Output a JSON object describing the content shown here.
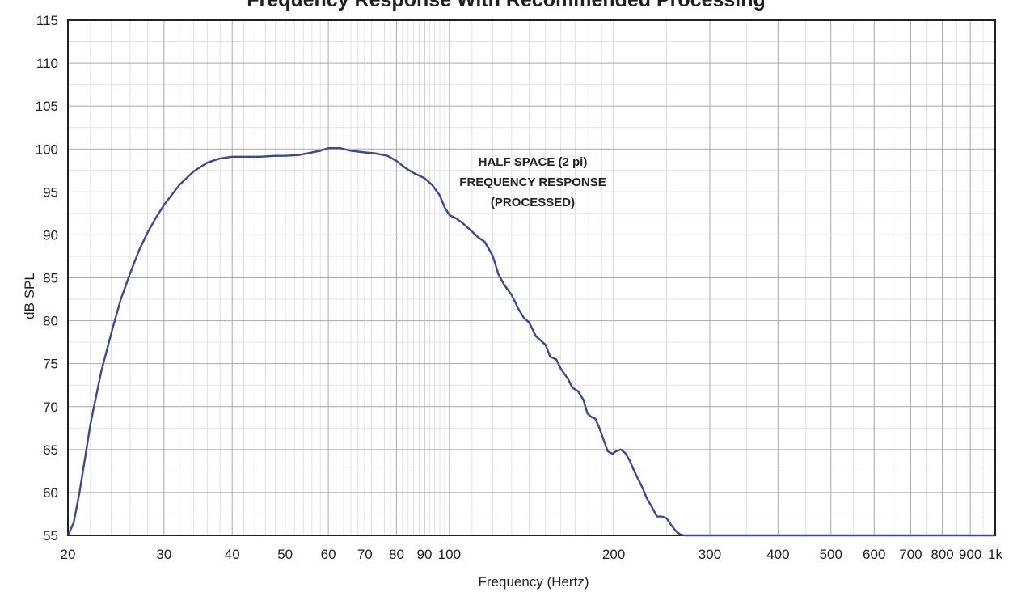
{
  "chart_data": {
    "type": "line",
    "title": "Frequency Response With Recommended Processing",
    "xlabel": "Frequency (Hertz)",
    "ylabel": "dB SPL",
    "x_scale": "log",
    "xlim": [
      20,
      1000
    ],
    "ylim": [
      55,
      115
    ],
    "grid": true,
    "x_ticks": [
      {
        "value": 20,
        "label": "20"
      },
      {
        "value": 30,
        "label": "30"
      },
      {
        "value": 40,
        "label": "40"
      },
      {
        "value": 50,
        "label": "50"
      },
      {
        "value": 60,
        "label": "60"
      },
      {
        "value": 70,
        "label": "70"
      },
      {
        "value": 80,
        "label": "80"
      },
      {
        "value": 90,
        "label": "90"
      },
      {
        "value": 100,
        "label": "100"
      },
      {
        "value": 200,
        "label": "200"
      },
      {
        "value": 300,
        "label": "300"
      },
      {
        "value": 400,
        "label": "400"
      },
      {
        "value": 500,
        "label": "500"
      },
      {
        "value": 600,
        "label": "600"
      },
      {
        "value": 700,
        "label": "700"
      },
      {
        "value": 800,
        "label": "800"
      },
      {
        "value": 900,
        "label": "900"
      },
      {
        "value": 1000,
        "label": "1k"
      }
    ],
    "y_ticks": [
      55,
      60,
      65,
      70,
      75,
      80,
      85,
      90,
      95,
      100,
      105,
      110,
      115
    ],
    "annotation": [
      "HALF SPACE (2 pi)",
      "FREQUENCY RESPONSE",
      "(PROCESSED)"
    ],
    "series": [
      {
        "color": "#3b4a8c",
        "x": [
          20,
          20.5,
          21,
          21.5,
          22,
          23,
          24,
          25,
          26,
          27,
          28,
          29,
          30,
          32,
          34,
          36,
          38,
          40,
          42,
          45,
          48,
          50,
          53,
          55,
          58,
          60,
          63,
          66,
          70,
          73,
          77,
          80,
          83,
          86,
          90,
          93,
          96,
          98,
          100,
          103,
          106,
          110,
          113,
          116,
          120,
          123,
          126,
          130,
          134,
          137,
          140,
          144,
          147,
          150,
          153,
          157,
          160,
          165,
          168,
          172,
          176,
          179,
          182,
          185,
          188,
          191,
          195,
          199,
          202,
          206,
          210,
          214,
          218,
          222,
          226,
          230,
          235,
          240,
          245,
          250,
          255,
          260,
          265,
          270,
          300,
          400,
          500,
          600,
          700,
          800,
          900,
          1000
        ],
        "y": [
          55,
          56.5,
          60,
          64,
          68,
          74,
          78.5,
          82.5,
          85.5,
          88.2,
          90.3,
          92,
          93.5,
          95.8,
          97.4,
          98.4,
          98.9,
          99.1,
          99.1,
          99.1,
          99.2,
          99.2,
          99.3,
          99.5,
          99.8,
          100.1,
          100.1,
          99.8,
          99.6,
          99.5,
          99.2,
          98.6,
          97.8,
          97.2,
          96.6,
          95.8,
          94.6,
          93.2,
          92.3,
          91.9,
          91.3,
          90.4,
          89.7,
          89.2,
          87.6,
          85.4,
          84.2,
          83,
          81.3,
          80.3,
          79.8,
          78.2,
          77.7,
          77.2,
          75.8,
          75.5,
          74.4,
          73.2,
          72.2,
          71.8,
          70.8,
          69.2,
          68.8,
          68.6,
          67.6,
          66.4,
          64.8,
          64.5,
          64.8,
          65,
          64.6,
          63.7,
          62.5,
          61.5,
          60.5,
          59.3,
          58.3,
          57.2,
          57.2,
          57,
          56.2,
          55.5,
          55.1,
          55,
          55,
          55,
          55,
          55,
          55,
          55,
          55,
          55
        ]
      }
    ]
  }
}
